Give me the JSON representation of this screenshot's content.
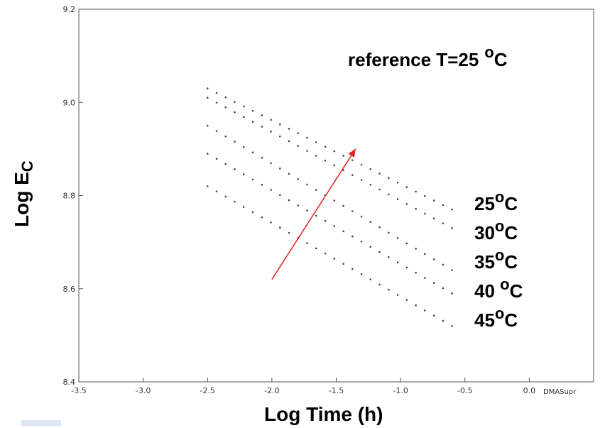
{
  "chart_data": {
    "type": "scatter",
    "title": "",
    "xlabel": "Log Time (h)",
    "ylabel": "Log E",
    "ylabel_sub": "C",
    "xlim": [
      -3.5,
      0.5
    ],
    "ylim": [
      8.4,
      9.2
    ],
    "x_ticks": [
      "-3.5",
      "-3.0",
      "-2.5",
      "-2.0",
      "-1.5",
      "-1.0",
      "-0.5",
      "0.0"
    ],
    "y_ticks": [
      "8.4",
      "8.6",
      "8.8",
      "9.0",
      "9.2"
    ],
    "grid": false,
    "corner_label": "DMASupr",
    "annotation": {
      "text": "reference T=25",
      "sup": "o",
      "unit": "C"
    },
    "arrow": {
      "from": [
        -2.0,
        8.62
      ],
      "to": [
        -1.35,
        8.9
      ],
      "color": "#e0201f"
    },
    "series": [
      {
        "label": "25",
        "points": [
          [
            -2.5,
            9.03
          ],
          [
            -0.6,
            8.77
          ]
        ]
      },
      {
        "label": "30",
        "points": [
          [
            -2.5,
            9.01
          ],
          [
            -0.6,
            8.73
          ]
        ]
      },
      {
        "label": "35",
        "points": [
          [
            -2.5,
            8.95
          ],
          [
            -0.6,
            8.64
          ]
        ]
      },
      {
        "label": "40",
        "points": [
          [
            -2.5,
            8.89
          ],
          [
            -0.6,
            8.59
          ]
        ]
      },
      {
        "label": "45",
        "points": [
          [
            -2.5,
            8.82
          ],
          [
            -0.6,
            8.52
          ]
        ]
      }
    ],
    "series_labels": [
      {
        "value": "25",
        "sup": "o",
        "unit": "C"
      },
      {
        "value": "30",
        "sup": "o",
        "unit": "C"
      },
      {
        "value": "35",
        "sup": "o",
        "unit": "C"
      },
      {
        "value": "40 ",
        "sup": "o",
        "unit": "C"
      },
      {
        "value": "45",
        "sup": "o",
        "unit": "C"
      }
    ]
  }
}
